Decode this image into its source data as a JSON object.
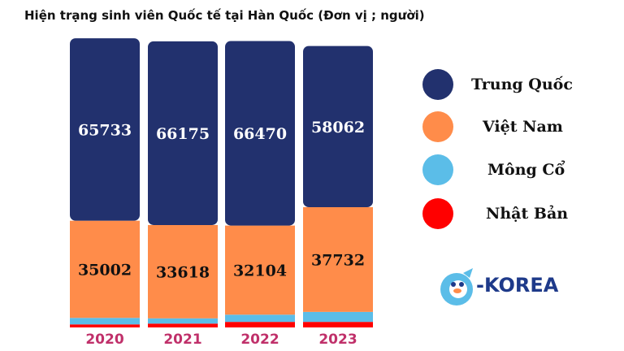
{
  "title": "Hiện trạng sinh viên Quốc tế tại Hàn Quốc (Đơn vị ; người)",
  "chart_data": {
    "type": "bar",
    "stacked": true,
    "categories": [
      "2020",
      "2021",
      "2022",
      "2023"
    ],
    "series": [
      {
        "name": "Nhật Bản",
        "color": "#ff0000",
        "values": [
          1100,
          1380,
          2000,
          2000
        ]
      },
      {
        "name": "Mông Cổ",
        "color": "#5bbde8",
        "values": [
          2340,
          1900,
          2600,
          3600
        ]
      },
      {
        "name": "Việt Nam",
        "color": "#ff8c4a",
        "values": [
          35002,
          33618,
          32104,
          37732
        ]
      },
      {
        "name": "Trung Quốc",
        "color": "#22316e",
        "values": [
          65733,
          66175,
          66470,
          58062
        ]
      }
    ],
    "labeled_series": [
      "Việt Nam",
      "Trung Quốc"
    ],
    "legend_order": [
      "Trung Quốc",
      "Việt Nam",
      "Mông Cổ",
      "Nhật Bản"
    ],
    "legend_position": "right",
    "ylim": [
      0,
      104500
    ]
  },
  "legend": {
    "trung_quoc": "Trung Quốc",
    "viet_nam": "Việt Nam",
    "mong_co": "Mông Cổ",
    "nhat_ban": "Nhật Bản"
  },
  "logo": {
    "text": "-KOREA"
  },
  "colors": {
    "trung_quoc": "#22316e",
    "viet_nam": "#ff8c4a",
    "mong_co": "#5bbde8",
    "nhat_ban": "#ff0000",
    "year_label": "#c0306a",
    "logo_blue": "#5bbde8"
  }
}
